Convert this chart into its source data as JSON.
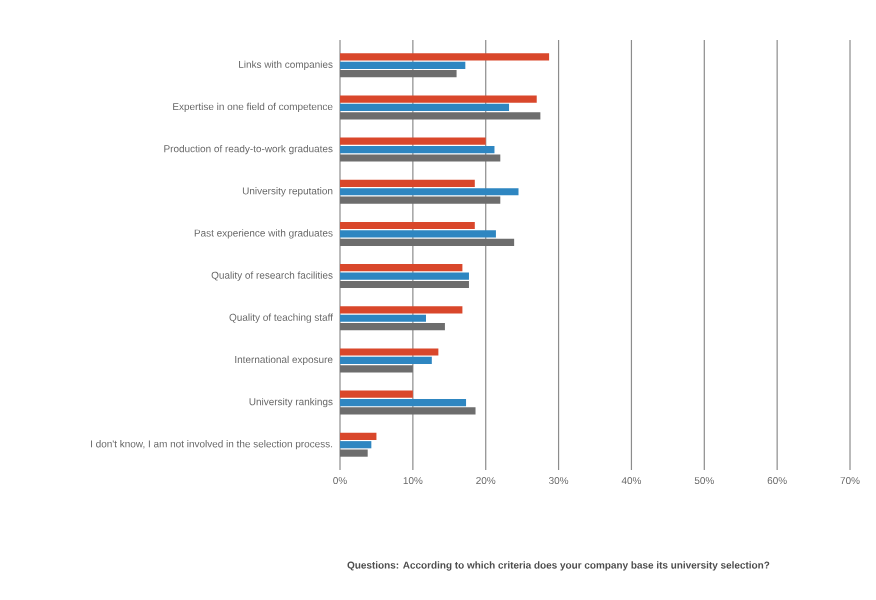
{
  "chart_data": {
    "type": "bar",
    "orientation": "horizontal",
    "title": "Questions: According to which criteria does your company base its university selection?",
    "categories": [
      "Links with companies",
      "Expertise in one field of competence",
      "Production of ready-to-work graduates",
      "University reputation",
      "Past experience with graduates",
      "Quality of research facilities",
      "Quality of teaching staff",
      "International exposure",
      "University rankings",
      "I don't know, I am not involved in the selection process."
    ],
    "series": [
      {
        "color": "#d9472b",
        "values": [
          28.7,
          27,
          20,
          18.5,
          18.5,
          16.8,
          16.8,
          13.5,
          10,
          5
        ]
      },
      {
        "color": "#2e86c1",
        "values": [
          17.2,
          23.2,
          21.2,
          24.5,
          21.4,
          17.7,
          11.8,
          12.6,
          17.3,
          4.3
        ]
      },
      {
        "color": "#6d6d6d",
        "values": [
          16,
          27.5,
          22,
          22,
          23.9,
          17.7,
          14.4,
          10,
          18.6,
          3.8
        ]
      }
    ],
    "xlim": [
      0,
      70
    ],
    "xticks": [
      {
        "value": 0,
        "label": "0%"
      },
      {
        "value": 10,
        "label": "10%"
      },
      {
        "value": 20,
        "label": "20%"
      },
      {
        "value": 30,
        "label": "30%"
      },
      {
        "value": 40,
        "label": "40%"
      },
      {
        "value": 50,
        "label": "50%"
      },
      {
        "value": 60,
        "label": "60%"
      },
      {
        "value": 70,
        "label": "70%"
      }
    ],
    "grid": "x"
  }
}
